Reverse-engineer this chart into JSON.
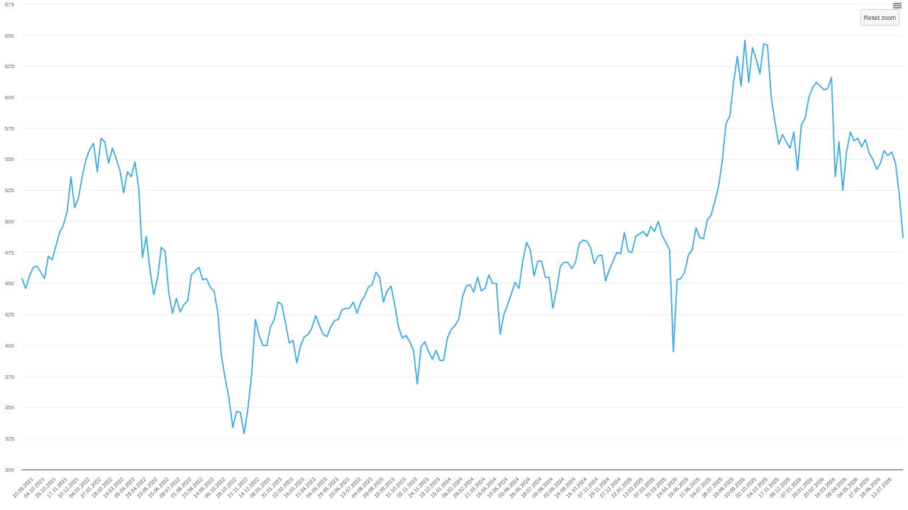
{
  "chart_data": {
    "type": "line",
    "categories": [
      null,
      null,
      null,
      "10.09.2021",
      null,
      null,
      "04.10.2021",
      null,
      null,
      "26.10.2021",
      null,
      null,
      "17.11.2021",
      null,
      null,
      "10.12.2021",
      null,
      null,
      "04.01.2022",
      null,
      null,
      "27.01.2022",
      null,
      null,
      "18.02.2022",
      null,
      null,
      "14.03.2022",
      null,
      null,
      "05.04.2022",
      null,
      null,
      "29.04.2022",
      null,
      null,
      "23.05.2022",
      null,
      null,
      "15.06.2022",
      null,
      null,
      "08.07.2022",
      null,
      null,
      "01.08.2022",
      null,
      null,
      "23.08.2022",
      null,
      null,
      "14.09.2022",
      null,
      null,
      "06.10.2022",
      null,
      null,
      "28.10.2022",
      null,
      null,
      "21.11.2022",
      null,
      null,
      "14.12.2022",
      null,
      null,
      "09.01.2023",
      null,
      null,
      "31.01.2023",
      null,
      null,
      "22.02.2023",
      null,
      null,
      "16.03.2023",
      null,
      null,
      "11.04.2023",
      null,
      null,
      "04.05.2023",
      null,
      null,
      "29.05.2023",
      null,
      null,
      "20.06.2023",
      null,
      null,
      "13.07.2023",
      null,
      null,
      "04.08.2023",
      null,
      null,
      "28.08.2023",
      null,
      null,
      "19.09.2023",
      null,
      null,
      "11.10.2023",
      null,
      null,
      "02.11.2023",
      null,
      null,
      "24.11.2023",
      null,
      null,
      "19.12.2023",
      null,
      null,
      "15.01.2024",
      null,
      null,
      "06.02.2024",
      null,
      null,
      "28.02.2024",
      null,
      null,
      "21.03.2024",
      null,
      null,
      "16.04.2024",
      null,
      null,
      "10.05.2024",
      null,
      null,
      "03.06.2024",
      null,
      null,
      "26.06.2024",
      null,
      null,
      "18.07.2024",
      null,
      null,
      "09.08.2024",
      null,
      null,
      "02.09.2024",
      null,
      null,
      "24.09.2024",
      null,
      null,
      "16.10.2024",
      null,
      null,
      "07.11.2024",
      null,
      null,
      "29.11.2024",
      null,
      null,
      "27.12.2024",
      null,
      null,
      "22.01.2025",
      null,
      null,
      "13.02.2025",
      null,
      null,
      "07.03.2025",
      null,
      null,
      "31.03.2025",
      null,
      null,
      "24.04.2025",
      null,
      null,
      "19.05.2025",
      null,
      null,
      "11.06.2025",
      null,
      null,
      "04.07.2025",
      null,
      null,
      "28.07.2025",
      null,
      null,
      "19.08.2025",
      null,
      null,
      "10.09.2025",
      null,
      null,
      "02.10.2025",
      null,
      null,
      "24.10.2025",
      null,
      null,
      "17.11.2025",
      null,
      null,
      "09.12.2025",
      null,
      null,
      "07.01.2026",
      null,
      null,
      "29.01.2026",
      null,
      null,
      "20.02.2026",
      null,
      null,
      "16.03.2026",
      null,
      null,
      "09.04.2026",
      null,
      null,
      "04.05.2026",
      null,
      null,
      "27.05.2026",
      null,
      null,
      "18.06.2026",
      null,
      null,
      "13.07.2026",
      null,
      null,
      null
    ],
    "series": [
      {
        "color": "#36abe6",
        "values": [
          454,
          446,
          456,
          463,
          464,
          459,
          454,
          472,
          469,
          480,
          491,
          497,
          508,
          536,
          511,
          519,
          536,
          550,
          558,
          563,
          540,
          567,
          564,
          547,
          559,
          551,
          541,
          523,
          540,
          536,
          548,
          527,
          471,
          488,
          461,
          441,
          454,
          479,
          476,
          442,
          426,
          438,
          427,
          433,
          436,
          457,
          460,
          463,
          453,
          454,
          447,
          444,
          427,
          391,
          373,
          357,
          334,
          347,
          346,
          329,
          349,
          377,
          421,
          408,
          400,
          400,
          415,
          421,
          435,
          433,
          418,
          402,
          404,
          386,
          400,
          407,
          409,
          414,
          424,
          416,
          409,
          407,
          415,
          420,
          421,
          429,
          430,
          430,
          435,
          426,
          435,
          440,
          447,
          449,
          459,
          455,
          435,
          444,
          448,
          433,
          415,
          406,
          408,
          403,
          396,
          369,
          399,
          403,
          395,
          389,
          396,
          388,
          388,
          406,
          413,
          416,
          421,
          439,
          448,
          449,
          443,
          455,
          444,
          446,
          457,
          450,
          450,
          409,
          425,
          433,
          442,
          451,
          446,
          468,
          483,
          477,
          456,
          468,
          468,
          455,
          455,
          430,
          445,
          464,
          467,
          467,
          462,
          467,
          482,
          485,
          484,
          479,
          466,
          472,
          473,
          452,
          461,
          468,
          475,
          474,
          491,
          476,
          475,
          488,
          490,
          492,
          488,
          496,
          492,
          500,
          489,
          483,
          477,
          395,
          453,
          454,
          459,
          473,
          477,
          495,
          487,
          486,
          501,
          505,
          516,
          528,
          549,
          579,
          585,
          612,
          633,
          609,
          646,
          612,
          640,
          631,
          619,
          643,
          642,
          600,
          580,
          562,
          570,
          564,
          559,
          572,
          541,
          578,
          583,
          600,
          608,
          612,
          609,
          606,
          607,
          616,
          536,
          564,
          525,
          556,
          572,
          565,
          567,
          560,
          566,
          555,
          550,
          542,
          547,
          557,
          553,
          556,
          547,
          522,
          487
        ]
      }
    ],
    "ylim": [
      300,
      675
    ],
    "yticks": [
      300,
      325,
      350,
      375,
      400,
      425,
      450,
      475,
      500,
      525,
      550,
      575,
      600,
      625,
      650,
      675
    ],
    "grid": "y",
    "annotations": [
      "Reset zoom"
    ]
  }
}
